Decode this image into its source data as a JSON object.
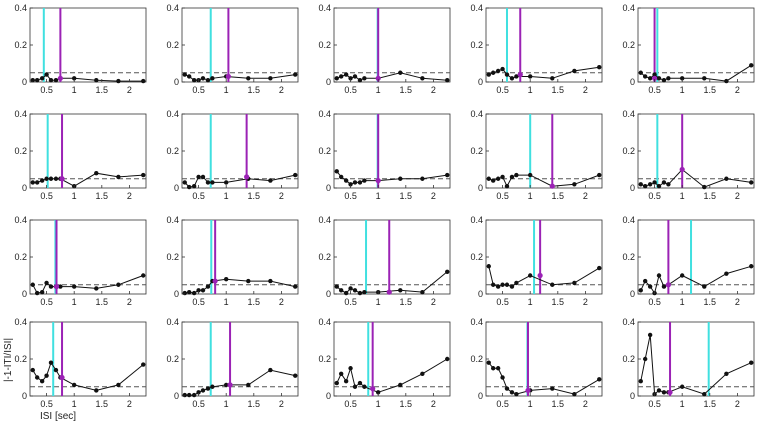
{
  "chart_data": {
    "type": "line",
    "layout": "4x5 grid of panels",
    "xlabel": "ISI [sec]",
    "ylabel": "|-1-ITI/ISI|",
    "xlim": [
      0.2,
      2.3
    ],
    "ylim": [
      0,
      0.4
    ],
    "xticks": [
      0.5,
      1,
      1.5,
      2
    ],
    "xtick_labels": [
      "0.5",
      "1",
      "1.5",
      "2"
    ],
    "yticks": [
      0,
      0.2,
      0.4
    ],
    "ytick_labels": [
      "0",
      "0.2",
      "0.4"
    ],
    "x": [
      0.25,
      0.33,
      0.42,
      0.5,
      0.58,
      0.67,
      0.75,
      1.0,
      1.4,
      1.8,
      2.25
    ],
    "reference_line_y": 0.05,
    "colors": {
      "line": "#111111",
      "cyan": "#40e0e0",
      "purple": "#9b22b5",
      "dashed": "#555555",
      "frame": "#333333"
    },
    "panels": [
      {
        "y": [
          0.01,
          0.01,
          0.02,
          0.04,
          0.01,
          0.01,
          0.02,
          0.02,
          0.01,
          0.005,
          0.005
        ],
        "cyan_x": 0.45,
        "purple_x": 0.75,
        "marker_y": 0.02
      },
      {
        "y": [
          0.04,
          0.03,
          0.01,
          0.01,
          0.02,
          0.01,
          0.02,
          0.03,
          0.02,
          0.02,
          0.04
        ],
        "cyan_x": 0.72,
        "purple_x": 1.04,
        "marker_y": 0.03
      },
      {
        "y": [
          0.02,
          0.03,
          0.04,
          0.02,
          0.03,
          0.01,
          0.02,
          0.02,
          0.05,
          0.02,
          0.01
        ],
        "cyan_x": 0.99,
        "purple_x": 1.0,
        "marker_y": 0.02
      },
      {
        "y": [
          0.04,
          0.05,
          0.06,
          0.07,
          0.04,
          0.02,
          0.03,
          0.03,
          0.02,
          0.06,
          0.08
        ],
        "cyan_x": 0.58,
        "purple_x": 0.82,
        "marker_y": 0.04
      },
      {
        "y": [
          0.05,
          0.03,
          0.02,
          0.04,
          0.02,
          0.01,
          0.02,
          0.02,
          0.02,
          0.005,
          0.09
        ],
        "cyan_x": 0.55,
        "purple_x": 0.5,
        "marker_y": 0.02
      },
      {
        "y": [
          0.03,
          0.03,
          0.04,
          0.05,
          0.05,
          0.05,
          0.05,
          0.01,
          0.08,
          0.06,
          0.07
        ],
        "cyan_x": 0.52,
        "purple_x": 0.78,
        "marker_y": 0.05
      },
      {
        "y": [
          0.03,
          0.005,
          0.01,
          0.06,
          0.06,
          0.03,
          0.03,
          0.03,
          0.05,
          0.04,
          0.07
        ],
        "cyan_x": 0.72,
        "purple_x": 1.37,
        "marker_y": 0.06
      },
      {
        "y": [
          0.09,
          0.06,
          0.04,
          0.02,
          0.03,
          0.03,
          0.04,
          0.04,
          0.05,
          0.05,
          0.07
        ],
        "cyan_x": 0.99,
        "purple_x": 1.0,
        "marker_y": 0.04
      },
      {
        "y": [
          0.05,
          0.04,
          0.05,
          0.06,
          0.01,
          0.06,
          0.07,
          0.07,
          0.01,
          0.02,
          0.07
        ],
        "cyan_x": 1.0,
        "purple_x": 1.4,
        "marker_y": 0.01
      },
      {
        "y": [
          0.02,
          0.01,
          0.02,
          0.03,
          0.01,
          0.03,
          0.02,
          0.1,
          0.005,
          0.05,
          0.03
        ],
        "cyan_x": 0.55,
        "purple_x": 1.0,
        "marker_y": 0.1
      },
      {
        "y": [
          0.05,
          0.005,
          0.01,
          0.06,
          0.04,
          0.04,
          0.04,
          0.04,
          0.03,
          0.05,
          0.1
        ],
        "cyan_x": 0.66,
        "purple_x": 0.68,
        "marker_y": 0.04
      },
      {
        "y": [
          0.005,
          0.01,
          0.005,
          0.02,
          0.02,
          0.04,
          0.07,
          0.08,
          0.07,
          0.07,
          0.04
        ],
        "cyan_x": 0.73,
        "purple_x": 0.8,
        "marker_y": 0.07
      },
      {
        "y": [
          0.04,
          0.02,
          0.005,
          0.03,
          0.02,
          0.005,
          0.01,
          0.01,
          0.02,
          0.01,
          0.12
        ],
        "cyan_x": 0.78,
        "purple_x": 1.2,
        "marker_y": 0.01
      },
      {
        "y": [
          0.15,
          0.05,
          0.04,
          0.05,
          0.05,
          0.04,
          0.06,
          0.1,
          0.05,
          0.06,
          0.14
        ],
        "cyan_x": 1.07,
        "purple_x": 1.18,
        "marker_y": 0.1
      },
      {
        "y": [
          0.02,
          0.07,
          0.04,
          0.005,
          0.1,
          0.04,
          0.05,
          0.1,
          0.04,
          0.11,
          0.15
        ],
        "cyan_x": 1.16,
        "purple_x": 0.75,
        "marker_y": 0.05
      },
      {
        "y": [
          0.14,
          0.1,
          0.08,
          0.11,
          0.18,
          0.14,
          0.1,
          0.06,
          0.03,
          0.06,
          0.17
        ],
        "cyan_x": 0.62,
        "purple_x": 0.78,
        "marker_y": 0.1
      },
      {
        "y": [
          0.005,
          0.005,
          0.005,
          0.02,
          0.03,
          0.04,
          0.05,
          0.06,
          0.06,
          0.14,
          0.11
        ],
        "cyan_x": 0.72,
        "purple_x": 1.07,
        "marker_y": 0.06
      },
      {
        "y": [
          0.07,
          0.12,
          0.08,
          0.15,
          0.05,
          0.07,
          0.05,
          0.02,
          0.06,
          0.12,
          0.2
        ],
        "cyan_x": 0.82,
        "purple_x": 0.9,
        "marker_y": 0.04
      },
      {
        "y": [
          0.18,
          0.15,
          0.15,
          0.1,
          0.04,
          0.02,
          0.01,
          0.03,
          0.04,
          0.01,
          0.09
        ],
        "cyan_x": 0.95,
        "purple_x": 0.96,
        "marker_y": 0.03
      },
      {
        "y": [
          0.08,
          0.2,
          0.33,
          0.01,
          0.03,
          0.02,
          0.02,
          0.05,
          0.01,
          0.12,
          0.18
        ],
        "cyan_x": 1.48,
        "purple_x": 0.78,
        "marker_y": 0.02
      }
    ]
  }
}
